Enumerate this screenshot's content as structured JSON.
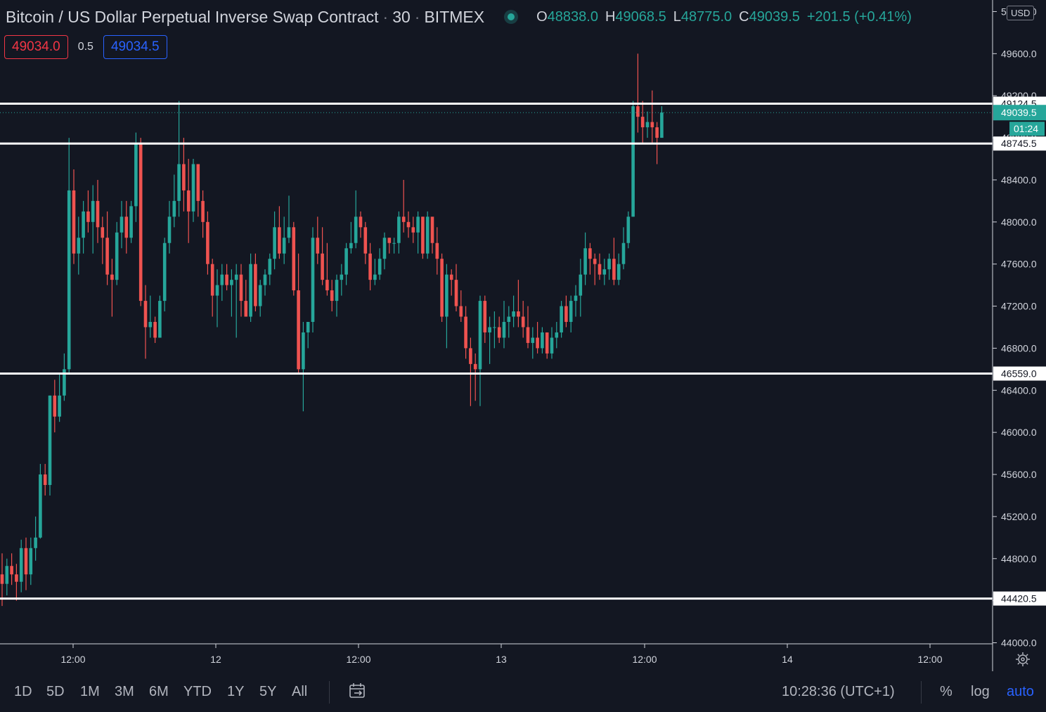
{
  "header": {
    "symbol": "Bitcoin / US Dollar Perpetual Inverse Swap Contract",
    "interval": "30",
    "exchange": "BITMEX",
    "ohlc": {
      "open_label": "O",
      "open": "48838.0",
      "high_label": "H",
      "high": "49068.5",
      "low_label": "L",
      "low": "48775.0",
      "close_label": "C",
      "close": "49039.5",
      "change": "+201.5 (+0.41%)"
    }
  },
  "trade": {
    "sell_price": "49034.0",
    "spread": "0.5",
    "buy_price": "49034.5"
  },
  "currency": "USD",
  "chart_data": {
    "type": "candlestick",
    "y_axis_ticks": [
      "44000.0",
      "44400.0",
      "44800.0",
      "45200.0",
      "45600.0",
      "46000.0",
      "46400.0",
      "46800.0",
      "47200.0",
      "47600.0",
      "48000.0",
      "48400.0",
      "48800.0",
      "49200.0",
      "49600.0",
      "50000.0"
    ],
    "y_range": [
      43990,
      50110
    ],
    "x_axis_labels": [
      "12:00",
      "12",
      "12:00",
      "13",
      "12:00",
      "14",
      "12:00"
    ],
    "horizontal_lines": [
      {
        "price": 49124.5,
        "label": "49124.5"
      },
      {
        "price": 48745.5,
        "label": "48745.5"
      },
      {
        "price": 46559.0,
        "label": "46559.0"
      },
      {
        "price": 44420.5,
        "label": "44420.5"
      }
    ],
    "last_price": {
      "price": 49039.5,
      "label": "49039.5",
      "countdown": "01:24"
    },
    "colors": {
      "up": "#26a69a",
      "down": "#ef5350",
      "background": "#131722",
      "line": "#ffffff"
    },
    "candles": [
      [
        44650,
        44850,
        44350,
        44560
      ],
      [
        44560,
        44800,
        44450,
        44730
      ],
      [
        44730,
        44850,
        44550,
        44650
      ],
      [
        44650,
        44750,
        44400,
        44580
      ],
      [
        44580,
        44980,
        44480,
        44900
      ],
      [
        44900,
        45000,
        44500,
        44650
      ],
      [
        44650,
        45000,
        44550,
        44900
      ],
      [
        44900,
        45200,
        44780,
        45000
      ],
      [
        45000,
        45700,
        44990,
        45600
      ],
      [
        45600,
        45700,
        45400,
        45500
      ],
      [
        45500,
        46350,
        45400,
        46350
      ],
      [
        46350,
        46500,
        46000,
        46150
      ],
      [
        46150,
        46550,
        46100,
        46350
      ],
      [
        46350,
        46750,
        46300,
        46600
      ],
      [
        46600,
        48800,
        46550,
        48300
      ],
      [
        48300,
        48500,
        47600,
        47700
      ],
      [
        47700,
        48050,
        47500,
        47850
      ],
      [
        47850,
        48200,
        47700,
        48100
      ],
      [
        48100,
        48300,
        47900,
        48000
      ],
      [
        48000,
        48350,
        47700,
        48200
      ],
      [
        48200,
        48400,
        47800,
        47950
      ],
      [
        47950,
        48050,
        47600,
        47850
      ],
      [
        47850,
        48100,
        47400,
        47500
      ],
      [
        47500,
        47650,
        47100,
        47450
      ],
      [
        47450,
        48000,
        47400,
        47900
      ],
      [
        47900,
        48200,
        47750,
        48050
      ],
      [
        48050,
        48200,
        47700,
        47850
      ],
      [
        47850,
        48200,
        47800,
        48150
      ],
      [
        48150,
        48850,
        48000,
        48750
      ],
      [
        48750,
        48800,
        47200,
        47250
      ],
      [
        47250,
        47400,
        46700,
        47000
      ],
      [
        47000,
        47300,
        46900,
        47050
      ],
      [
        47050,
        47100,
        46850,
        46900
      ],
      [
        46900,
        47300,
        46900,
        47250
      ],
      [
        47250,
        47850,
        47150,
        47800
      ],
      [
        47800,
        48200,
        47700,
        48050
      ],
      [
        48050,
        48450,
        47950,
        48200
      ],
      [
        48200,
        49150,
        48050,
        48550
      ],
      [
        48550,
        48800,
        48100,
        48300
      ],
      [
        48300,
        48600,
        47800,
        48100
      ],
      [
        48100,
        48600,
        48000,
        48550
      ],
      [
        48550,
        48500,
        48050,
        48200
      ],
      [
        48200,
        48300,
        47850,
        48000
      ],
      [
        48000,
        48100,
        47500,
        47600
      ],
      [
        47600,
        47650,
        47100,
        47300
      ],
      [
        47300,
        47550,
        47000,
        47400
      ],
      [
        47400,
        47600,
        47250,
        47500
      ],
      [
        47500,
        47600,
        47350,
        47400
      ],
      [
        47400,
        47550,
        47100,
        47450
      ],
      [
        47450,
        47600,
        46900,
        47500
      ],
      [
        47500,
        47600,
        47100,
        47250
      ],
      [
        47250,
        47450,
        47100,
        47100
      ],
      [
        47100,
        47700,
        47050,
        47600
      ],
      [
        47600,
        47700,
        47150,
        47200
      ],
      [
        47200,
        47450,
        47100,
        47400
      ],
      [
        47400,
        47550,
        47300,
        47500
      ],
      [
        47500,
        47700,
        47400,
        47650
      ],
      [
        47650,
        48100,
        47550,
        47950
      ],
      [
        47950,
        48150,
        47650,
        47700
      ],
      [
        47700,
        48050,
        47600,
        47850
      ],
      [
        47850,
        48250,
        47800,
        47950
      ],
      [
        47950,
        48000,
        47300,
        47350
      ],
      [
        47350,
        47700,
        46550,
        46600
      ],
      [
        46600,
        47050,
        46200,
        46950
      ],
      [
        46950,
        47050,
        46800,
        47050
      ],
      [
        47050,
        47950,
        46950,
        47850
      ],
      [
        47850,
        48050,
        47600,
        47700
      ],
      [
        47700,
        47950,
        47400,
        47450
      ],
      [
        47450,
        47800,
        47300,
        47350
      ],
      [
        47350,
        47450,
        47150,
        47250
      ],
      [
        47250,
        47500,
        47100,
        47450
      ],
      [
        47450,
        47600,
        47300,
        47500
      ],
      [
        47500,
        47800,
        47400,
        47750
      ],
      [
        47750,
        48000,
        47700,
        47800
      ],
      [
        47800,
        48300,
        47750,
        48050
      ],
      [
        48050,
        48100,
        47850,
        47950
      ],
      [
        47950,
        48000,
        47600,
        47700
      ],
      [
        47700,
        47800,
        47350,
        47450
      ],
      [
        47450,
        47650,
        47400,
        47500
      ],
      [
        47500,
        47750,
        47450,
        47650
      ],
      [
        47650,
        47900,
        47550,
        47850
      ],
      [
        47850,
        47850,
        47700,
        47800
      ],
      [
        47800,
        47850,
        47700,
        47800
      ],
      [
        47800,
        48100,
        47700,
        48050
      ],
      [
        48050,
        48400,
        47900,
        48000
      ],
      [
        48000,
        48100,
        47850,
        47950
      ],
      [
        47950,
        48050,
        47800,
        47900
      ],
      [
        47900,
        48100,
        47700,
        48050
      ],
      [
        48050,
        48050,
        47650,
        47700
      ],
      [
        47700,
        48100,
        47650,
        48050
      ],
      [
        48050,
        48000,
        47700,
        47800
      ],
      [
        47800,
        47950,
        47500,
        47650
      ],
      [
        47650,
        47700,
        47050,
        47100
      ],
      [
        47100,
        47600,
        46800,
        47500
      ],
      [
        47500,
        47550,
        47300,
        47450
      ],
      [
        47450,
        47600,
        47150,
        47200
      ],
      [
        47200,
        47350,
        47050,
        47100
      ],
      [
        47100,
        47200,
        46700,
        46800
      ],
      [
        46800,
        46900,
        46250,
        46650
      ],
      [
        46650,
        46750,
        46300,
        46600
      ],
      [
        46600,
        47300,
        46250,
        47250
      ],
      [
        47250,
        47300,
        46850,
        46950
      ],
      [
        46950,
        47100,
        46650,
        47000
      ],
      [
        47000,
        47150,
        46800,
        47000
      ],
      [
        47000,
        47100,
        46850,
        46900
      ],
      [
        46900,
        47250,
        46800,
        47050
      ],
      [
        47050,
        47200,
        46900,
        47100
      ],
      [
        47100,
        47300,
        47000,
        47150
      ],
      [
        47150,
        47450,
        47000,
        47100
      ],
      [
        47100,
        47250,
        46900,
        47000
      ],
      [
        47000,
        47200,
        46800,
        46850
      ],
      [
        46850,
        47000,
        46700,
        46900
      ],
      [
        46900,
        47050,
        46750,
        46800
      ],
      [
        46800,
        47000,
        46750,
        46950
      ],
      [
        46950,
        46950,
        46700,
        46750
      ],
      [
        46750,
        47000,
        46700,
        46900
      ],
      [
        46900,
        47050,
        46800,
        46950
      ],
      [
        46950,
        47250,
        46900,
        47200
      ],
      [
        47200,
        47300,
        47000,
        47050
      ],
      [
        47050,
        47300,
        46950,
        47250
      ],
      [
        47250,
        47400,
        47100,
        47300
      ],
      [
        47300,
        47650,
        47100,
        47500
      ],
      [
        47500,
        47900,
        47400,
        47750
      ],
      [
        47750,
        47800,
        47500,
        47650
      ],
      [
        47650,
        47700,
        47400,
        47600
      ],
      [
        47600,
        47700,
        47450,
        47500
      ],
      [
        47500,
        47650,
        47400,
        47550
      ],
      [
        47550,
        47700,
        47450,
        47650
      ],
      [
        47650,
        47850,
        47400,
        47450
      ],
      [
        47450,
        47700,
        47400,
        47600
      ],
      [
        47600,
        47950,
        47550,
        47800
      ],
      [
        47800,
        48100,
        47750,
        48050
      ],
      [
        48050,
        49150,
        48050,
        49100
      ],
      [
        49100,
        49600,
        48850,
        49000
      ],
      [
        49000,
        49150,
        48750,
        48900
      ],
      [
        48900,
        49050,
        48800,
        48950
      ],
      [
        48950,
        49250,
        48750,
        48900
      ],
      [
        48900,
        48950,
        48550,
        48800
      ],
      [
        48800,
        49100,
        48800,
        49040
      ]
    ]
  },
  "x_axis_labels_list": [
    "12:00",
    "12",
    "12:00",
    "13",
    "12:00",
    "14",
    "12:00"
  ],
  "bottom_bar": {
    "timeframes": [
      "1D",
      "5D",
      "1M",
      "3M",
      "6M",
      "YTD",
      "1Y",
      "5Y",
      "All"
    ],
    "time": "10:28:36 (UTC+1)",
    "percent": "%",
    "log": "log",
    "auto": "auto"
  }
}
